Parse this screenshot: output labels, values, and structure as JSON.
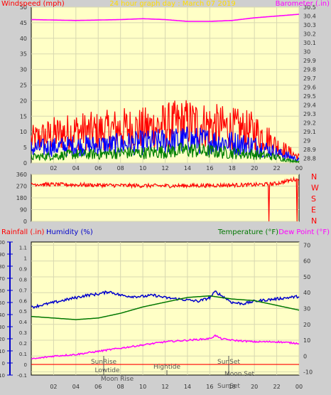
{
  "header": {
    "left_title": "Windspeed (mph)",
    "center_title": "24 hour graph day : March 07 2019",
    "right_title": "Barometer (.in)"
  },
  "colors": {
    "background": "#ffffc6",
    "frame": "#cfcfcf",
    "gust": "#ff0000",
    "wind_avg": "#0000ff",
    "wind_low": "#008000",
    "barometer": "#ff00ff",
    "direction": "#ff0000",
    "humidity": "#0000cc",
    "temperature": "#007700",
    "dewpoint": "#ff00ff"
  },
  "chart_data": [
    {
      "type": "line",
      "panel": "wind",
      "title": "Windspeed (mph)",
      "ylabel": "Windspeed (mph)",
      "y2label": "Barometer (.in)",
      "ylim": [
        0,
        50
      ],
      "y2lim": [
        28.75,
        30.5
      ],
      "xlim": [
        0,
        24
      ],
      "x_ticks": [
        "02",
        "04",
        "06",
        "08",
        "10",
        "12",
        "14",
        "16",
        "18",
        "20",
        "22",
        "00"
      ],
      "y_ticks": [
        0,
        5,
        10,
        15,
        20,
        25,
        30,
        35,
        40,
        45,
        50
      ],
      "y2_ticks": [
        "28.8",
        "28.9",
        "29",
        "29.1",
        "29.2",
        "29.3",
        "29.4",
        "29.5",
        "29.6",
        "29.7",
        "29.8",
        "29.9",
        "30",
        "30.1",
        "30.2",
        "30.3",
        "30.4",
        "30.5"
      ],
      "series": [
        {
          "axis": "y2",
          "x": [
            0,
            2,
            4,
            6,
            8,
            10,
            12,
            14,
            16,
            18,
            20,
            22,
            24
          ],
          "values": [
            30.36,
            30.355,
            30.35,
            30.355,
            30.36,
            30.37,
            30.36,
            30.34,
            30.34,
            30.35,
            30.38,
            30.4,
            30.42
          ]
        },
        {
          "style": "noisy",
          "x": [
            0,
            2,
            4,
            6,
            8,
            10,
            12,
            14,
            16,
            18,
            20,
            21,
            22,
            23,
            24
          ],
          "values": [
            8,
            10,
            11,
            11,
            12,
            12,
            13,
            14,
            13,
            12,
            11,
            9,
            6,
            4,
            2
          ]
        },
        {
          "style": "noisy",
          "x": [
            0,
            2,
            4,
            6,
            8,
            10,
            12,
            14,
            16,
            18,
            20,
            21,
            22,
            23,
            24
          ],
          "values": [
            5,
            5.5,
            6,
            6,
            6.5,
            7,
            7.5,
            8,
            7.5,
            7,
            6,
            5,
            3.5,
            2.5,
            1
          ]
        },
        {
          "style": "noisy",
          "x": [
            0,
            2,
            4,
            6,
            8,
            10,
            12,
            14,
            16,
            18,
            20,
            21,
            22,
            23,
            24
          ],
          "values": [
            2,
            2.5,
            3,
            3,
            3.5,
            3.5,
            4,
            4.5,
            4,
            3.5,
            3,
            2.5,
            2,
            1,
            0.5
          ]
        }
      ]
    },
    {
      "type": "line",
      "panel": "direction",
      "ylim": [
        0,
        360
      ],
      "y_ticks": [
        0,
        90,
        180,
        270,
        360
      ],
      "y_tick_labels": [
        "0",
        "90",
        "180",
        "270",
        "360"
      ],
      "compass_labels": [
        "N",
        "W",
        "S",
        "E",
        "N"
      ],
      "series": [
        {
          "style": "noisy",
          "x": [
            0,
            4,
            8,
            12,
            16,
            20,
            21.5,
            22,
            22.5,
            23.5,
            24
          ],
          "values": [
            285,
            280,
            275,
            272,
            275,
            280,
            285,
            290,
            300,
            320,
            330
          ],
          "drops": [
            [
              21.3,
              0
            ],
            [
              23.8,
              0
            ]
          ]
        }
      ]
    },
    {
      "type": "line",
      "panel": "temperature",
      "ylabel": "Rainfall (.in)",
      "ylabel2": "Humidity (%)",
      "y2label": "Temperature (°F)",
      "y2label2": "Dew Point (°F)",
      "rain_ylim": [
        -0.1,
        1.15
      ],
      "rain_ticks": [
        "-0.1",
        "0",
        "0.1",
        "0.2",
        "0.3",
        "0.4",
        "0.5",
        "0.6",
        "0.7",
        "0.8",
        "0.9",
        "1",
        "1.1"
      ],
      "hum_ylim": [
        -10,
        100
      ],
      "hum_ticks": [
        "-10",
        "0",
        "10",
        "20",
        "30",
        "40",
        "50",
        "60",
        "70",
        "80",
        "90",
        "100"
      ],
      "temp_ylim": [
        -12,
        72
      ],
      "temp_ticks": [
        "-10",
        "0",
        "10",
        "20",
        "30",
        "40",
        "50",
        "60",
        "70"
      ],
      "x_ticks": [
        "02",
        "04",
        "06",
        "08",
        "10",
        "12",
        "14",
        "16",
        "18",
        "20",
        "22",
        "00"
      ],
      "series": [
        {
          "style": "noisy",
          "x": [
            0,
            1,
            2,
            3,
            4,
            5,
            6,
            7,
            8,
            9,
            10,
            11,
            12,
            13,
            14,
            15,
            16,
            16.5,
            17,
            18,
            19,
            20,
            21,
            22,
            23,
            24
          ],
          "values": [
            46,
            48,
            50,
            52,
            54,
            56,
            57,
            59,
            56,
            55,
            55,
            56,
            54,
            53,
            52,
            51,
            54,
            59,
            56,
            50,
            49,
            51,
            52,
            53,
            54,
            55
          ]
        },
        {
          "axis": "temp",
          "x": [
            0,
            2,
            4,
            6,
            8,
            10,
            12,
            14,
            16,
            18,
            20,
            22,
            24
          ],
          "values": [
            25,
            24,
            23,
            24,
            27,
            31,
            34,
            37,
            38,
            36,
            35,
            32,
            29
          ]
        },
        {
          "axis": "temp",
          "style": "noisy_small",
          "x": [
            0,
            2,
            4,
            6,
            8,
            10,
            12,
            14,
            16,
            16.5,
            17,
            18,
            20,
            22,
            24
          ],
          "values": [
            -2,
            0,
            1,
            3,
            5,
            7,
            9,
            10,
            11,
            13,
            11,
            10,
            9,
            9,
            8
          ]
        }
      ]
    }
  ],
  "annotations": {
    "sunrise": "SunRise",
    "lowtide": "Lowtide",
    "moonrise": "Moon Rise",
    "hightide": "Hightide",
    "sunset": "SunSet",
    "moonset": "Moon Set",
    "sunset_bottom": "SunSet"
  }
}
